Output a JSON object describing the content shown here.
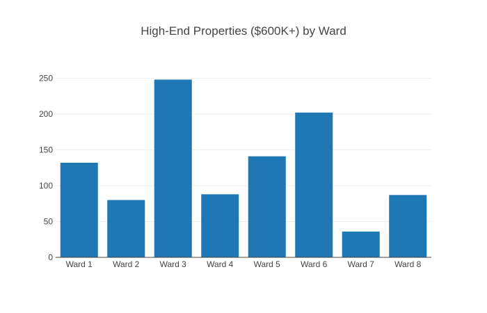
{
  "chart_data": {
    "type": "bar",
    "title": "High-End Properties ($600K+) by Ward",
    "xlabel": "",
    "ylabel": "",
    "categories": [
      "Ward 1",
      "Ward 2",
      "Ward 3",
      "Ward 4",
      "Ward 5",
      "Ward 6",
      "Ward 7",
      "Ward 8"
    ],
    "values": [
      132,
      80,
      248,
      88,
      141,
      202,
      36,
      87
    ],
    "ylim": [
      0,
      262
    ],
    "yticks": [
      0,
      50,
      100,
      150,
      200,
      250
    ],
    "ytick_labels": [
      "0",
      "50",
      "100",
      "150",
      "200",
      "250"
    ],
    "grid": true,
    "legend": "none",
    "colors": {
      "bar": "#1f77b4",
      "grid": "#eeeeee",
      "axis": "#444444",
      "text": "#444444",
      "background": "#ffffff"
    }
  }
}
